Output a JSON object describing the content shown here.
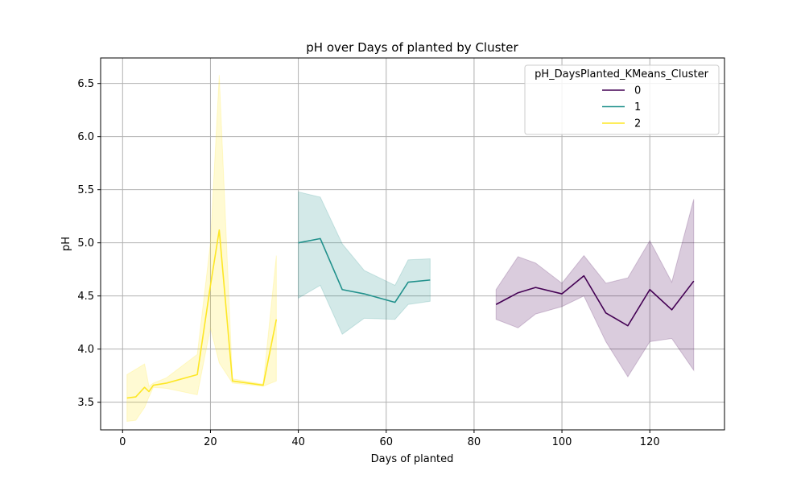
{
  "chart_data": {
    "type": "line",
    "title": "pH over Days of planted by Cluster",
    "xlabel": "Days of planted",
    "ylabel": "pH",
    "xlim": [
      -5,
      137
    ],
    "ylim": [
      3.24,
      6.74
    ],
    "xticks": [
      0,
      20,
      40,
      60,
      80,
      100,
      120
    ],
    "yticks": [
      3.5,
      4.0,
      4.5,
      5.0,
      5.5,
      6.0,
      6.5
    ],
    "xtick_labels": [
      "0",
      "20",
      "40",
      "60",
      "80",
      "100",
      "120"
    ],
    "ytick_labels": [
      "3.5",
      "4.0",
      "4.5",
      "5.0",
      "5.5",
      "6.0",
      "6.5"
    ],
    "grid": true,
    "legend": {
      "title": "pH_DaysPlanted_KMeans_Cluster",
      "placement": "top-right"
    },
    "series": [
      {
        "name": "0",
        "color": "#440154",
        "x": [
          85,
          90,
          94,
          100,
          105,
          110,
          115,
          120,
          125,
          130
        ],
        "y": [
          4.42,
          4.53,
          4.58,
          4.52,
          4.69,
          4.34,
          4.22,
          4.56,
          4.37,
          4.64
        ],
        "ci_low": [
          4.28,
          4.2,
          4.33,
          4.4,
          4.5,
          4.07,
          3.74,
          4.07,
          4.1,
          3.8
        ],
        "ci_high": [
          4.56,
          4.87,
          4.81,
          4.62,
          4.88,
          4.62,
          4.67,
          5.02,
          4.63,
          5.41
        ]
      },
      {
        "name": "1",
        "color": "#21918c",
        "x": [
          40,
          45,
          50,
          55,
          62,
          65,
          70
        ],
        "y": [
          5.0,
          5.04,
          4.56,
          4.52,
          4.44,
          4.63,
          4.65
        ],
        "ci_low": [
          4.48,
          4.6,
          4.14,
          4.29,
          4.28,
          4.42,
          4.45
        ],
        "ci_high": [
          5.48,
          5.43,
          4.99,
          4.74,
          4.6,
          4.84,
          4.85
        ]
      },
      {
        "name": "2",
        "color": "#fde725",
        "x": [
          1,
          3,
          5,
          6,
          7,
          10,
          17,
          20,
          22,
          25,
          32,
          35
        ],
        "y": [
          3.54,
          3.55,
          3.64,
          3.6,
          3.66,
          3.68,
          3.76,
          4.6,
          5.12,
          3.7,
          3.66,
          4.28
        ],
        "ci_low": [
          3.32,
          3.33,
          3.45,
          3.55,
          3.64,
          3.63,
          3.57,
          4.2,
          3.87,
          3.68,
          3.65,
          3.7
        ],
        "ci_high": [
          3.76,
          3.81,
          3.86,
          3.65,
          3.68,
          3.73,
          3.95,
          5.0,
          6.58,
          3.72,
          3.67,
          4.88
        ]
      }
    ]
  }
}
